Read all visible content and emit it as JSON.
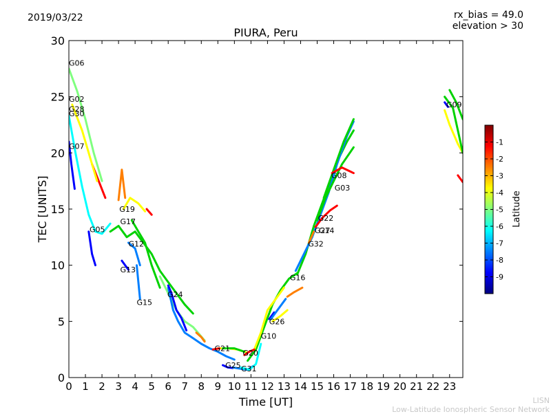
{
  "header": {
    "date": "2019/03/22",
    "rx_bias": "rx_bias = 49.0",
    "elevation": "elevation > 30"
  },
  "footer": {
    "org_short": "LISN",
    "org_full": "Low-Latitude Ionospheric Sensor Network"
  },
  "chart_data": {
    "type": "scatter",
    "title": "PIURA, Peru",
    "xlabel": "Time [UT]",
    "ylabel": "TEC [UNITS]",
    "xlim": [
      0,
      23.8
    ],
    "ylim": [
      0,
      30
    ],
    "xticks": [
      0,
      1,
      2,
      3,
      4,
      5,
      6,
      7,
      8,
      9,
      10,
      11,
      12,
      13,
      14,
      15,
      16,
      17,
      18,
      19,
      20,
      21,
      22,
      23
    ],
    "yticks": [
      0,
      5,
      10,
      15,
      20,
      25,
      30
    ],
    "colorbar": {
      "label": "Latitude",
      "range": [
        -10,
        0
      ],
      "ticks": [
        -1,
        -2,
        -3,
        -4,
        -5,
        -6,
        -7,
        -8,
        -9
      ],
      "colormap": "jet",
      "colors": [
        "#00007f",
        "#0000ff",
        "#007fff",
        "#00ffff",
        "#7fff7f",
        "#ffff00",
        "#ff7f00",
        "#ff0000",
        "#7f0000"
      ]
    },
    "satellite_labels": [
      {
        "name": "G06",
        "x": 0.0,
        "y": 28.0
      },
      {
        "name": "G02",
        "x": 0.0,
        "y": 24.8
      },
      {
        "name": "G28",
        "x": 0.0,
        "y": 23.9
      },
      {
        "name": "G30",
        "x": 0.0,
        "y": 23.5
      },
      {
        "name": "G07",
        "x": 0.0,
        "y": 20.6
      },
      {
        "name": "G05",
        "x": 1.25,
        "y": 13.2
      },
      {
        "name": "G19",
        "x": 3.05,
        "y": 15.0
      },
      {
        "name": "G17",
        "x": 3.1,
        "y": 13.9
      },
      {
        "name": "G12",
        "x": 3.6,
        "y": 11.9
      },
      {
        "name": "G13",
        "x": 3.1,
        "y": 9.6
      },
      {
        "name": "G15",
        "x": 4.1,
        "y": 6.7
      },
      {
        "name": "G24",
        "x": 5.95,
        "y": 7.4
      },
      {
        "name": "G21",
        "x": 8.8,
        "y": 2.6
      },
      {
        "name": "G25",
        "x": 9.45,
        "y": 1.1
      },
      {
        "name": "G20",
        "x": 10.5,
        "y": 2.2
      },
      {
        "name": "G31",
        "x": 10.4,
        "y": 0.8
      },
      {
        "name": "G10",
        "x": 11.6,
        "y": 3.7
      },
      {
        "name": "G26",
        "x": 12.1,
        "y": 5.0
      },
      {
        "name": "G16",
        "x": 13.35,
        "y": 8.9
      },
      {
        "name": "G32",
        "x": 14.45,
        "y": 11.9
      },
      {
        "name": "G27",
        "x": 14.85,
        "y": 13.1
      },
      {
        "name": "G14",
        "x": 15.1,
        "y": 13.1
      },
      {
        "name": "G22",
        "x": 15.05,
        "y": 14.2
      },
      {
        "name": "G08",
        "x": 15.85,
        "y": 18.0
      },
      {
        "name": "G03",
        "x": 16.05,
        "y": 16.9
      },
      {
        "name": "G09",
        "x": 22.8,
        "y": 24.3
      }
    ],
    "series": [
      {
        "color": "#7fff7f",
        "points": [
          [
            0,
            27.5
          ],
          [
            0.5,
            25.5
          ],
          [
            1,
            23
          ],
          [
            1.5,
            20
          ],
          [
            2,
            17.5
          ]
        ]
      },
      {
        "color": "#ff0000",
        "points": [
          [
            1.4,
            19
          ],
          [
            1.8,
            17.5
          ],
          [
            2.2,
            16
          ]
        ]
      },
      {
        "color": "#ffff00",
        "points": [
          [
            0.2,
            24.3
          ],
          [
            0.8,
            22
          ],
          [
            1.3,
            19.5
          ],
          [
            1.7,
            17.5
          ]
        ]
      },
      {
        "color": "#00ffff",
        "points": [
          [
            0,
            23.3
          ],
          [
            0.4,
            20
          ],
          [
            0.8,
            17
          ],
          [
            1.2,
            14.5
          ],
          [
            1.6,
            13
          ],
          [
            2,
            12.8
          ],
          [
            2.5,
            13.7
          ]
        ]
      },
      {
        "color": "#0000ff",
        "points": [
          [
            0,
            21
          ],
          [
            0.15,
            19
          ],
          [
            0.35,
            16.8
          ]
        ]
      },
      {
        "color": "#0000ff",
        "points": [
          [
            1.2,
            13
          ],
          [
            1.4,
            11
          ],
          [
            1.6,
            10
          ]
        ]
      },
      {
        "color": "#00d200",
        "points": [
          [
            2.5,
            13
          ],
          [
            3,
            13.5
          ],
          [
            3.5,
            12.5
          ],
          [
            4,
            13
          ],
          [
            4.5,
            12
          ],
          [
            5,
            11
          ],
          [
            5.5,
            9.5
          ],
          [
            6,
            8.5
          ],
          [
            6.5,
            7.5
          ],
          [
            7,
            6.5
          ],
          [
            7.5,
            5.7
          ]
        ]
      },
      {
        "color": "#ffff00",
        "points": [
          [
            3.3,
            15
          ],
          [
            3.7,
            16
          ],
          [
            4.2,
            15.5
          ],
          [
            4.6,
            14.8
          ]
        ]
      },
      {
        "color": "#ff7f00",
        "points": [
          [
            3,
            15.8
          ],
          [
            3.2,
            18.5
          ],
          [
            3.4,
            16
          ]
        ]
      },
      {
        "color": "#ff0000",
        "points": [
          [
            4.7,
            15
          ],
          [
            5,
            14.5
          ]
        ]
      },
      {
        "color": "#00d200",
        "points": [
          [
            3.8,
            14
          ],
          [
            4.2,
            13
          ],
          [
            4.6,
            12
          ],
          [
            5,
            10
          ],
          [
            5.5,
            8
          ]
        ]
      },
      {
        "color": "#007fff",
        "points": [
          [
            3.6,
            12
          ],
          [
            4,
            11.5
          ],
          [
            4.3,
            10
          ]
        ]
      },
      {
        "color": "#0000ff",
        "points": [
          [
            3.2,
            10.4
          ],
          [
            3.4,
            10
          ],
          [
            3.6,
            9.6
          ]
        ]
      },
      {
        "color": "#007fff",
        "points": [
          [
            4.1,
            10
          ],
          [
            4.2,
            8.5
          ],
          [
            4.3,
            7
          ]
        ]
      },
      {
        "color": "#7fff7f",
        "points": [
          [
            5.5,
            9
          ],
          [
            6,
            7.5
          ],
          [
            6.5,
            6
          ],
          [
            7,
            5
          ],
          [
            7.5,
            4.5
          ],
          [
            8.2,
            3.3
          ]
        ]
      },
      {
        "color": "#ff7f00",
        "points": [
          [
            7.7,
            4
          ],
          [
            8,
            3.6
          ],
          [
            8.2,
            3.2
          ]
        ]
      },
      {
        "color": "#007fff",
        "points": [
          [
            6,
            8
          ],
          [
            6.3,
            6
          ],
          [
            6.6,
            5
          ],
          [
            7,
            4
          ],
          [
            7.5,
            3.5
          ],
          [
            8,
            3
          ],
          [
            8.5,
            2.6
          ],
          [
            9,
            2.3
          ],
          [
            9.5,
            1.9
          ],
          [
            10,
            1.6
          ]
        ]
      },
      {
        "color": "#0000ff",
        "points": [
          [
            6,
            8.2
          ],
          [
            6.2,
            7.5
          ],
          [
            6.5,
            6
          ],
          [
            6.8,
            5.3
          ],
          [
            7.1,
            4.2
          ]
        ]
      },
      {
        "color": "#ffff00",
        "points": [
          [
            9,
            2.6
          ],
          [
            9.6,
            2.6
          ],
          [
            10.2,
            2.5
          ],
          [
            10.8,
            2.2
          ]
        ]
      },
      {
        "color": "#ff0000",
        "points": [
          [
            8.7,
            2.5
          ],
          [
            9.1,
            2.6
          ]
        ]
      },
      {
        "color": "#00d200",
        "points": [
          [
            9.3,
            2.6
          ],
          [
            10,
            2.6
          ],
          [
            10.6,
            2.3
          ]
        ]
      },
      {
        "color": "#0000ff",
        "points": [
          [
            9.3,
            1.1
          ],
          [
            9.6,
            0.9
          ],
          [
            9.9,
            0.85
          ]
        ]
      },
      {
        "color": "#007fff",
        "points": [
          [
            9.9,
            0.9
          ],
          [
            10.3,
            0.8
          ],
          [
            10.8,
            0.7
          ],
          [
            11.1,
            1
          ]
        ]
      },
      {
        "color": "#00ffff",
        "points": [
          [
            10.4,
            0.9
          ],
          [
            10.9,
            0.7
          ],
          [
            11.3,
            1.2
          ],
          [
            11.6,
            3
          ]
        ]
      },
      {
        "color": "#00d200",
        "points": [
          [
            10.8,
            1.5
          ],
          [
            11.3,
            2.5
          ],
          [
            11.8,
            4.5
          ],
          [
            12.3,
            6.5
          ],
          [
            12.8,
            7.8
          ],
          [
            13.3,
            8.8
          ],
          [
            13.8,
            9.3
          ]
        ]
      },
      {
        "color": "#ffff00",
        "points": [
          [
            11.2,
            2.5
          ],
          [
            11.6,
            4
          ],
          [
            12,
            6
          ],
          [
            12.5,
            7
          ],
          [
            13,
            8
          ]
        ]
      },
      {
        "color": "#ff0000",
        "points": [
          [
            10.6,
            2
          ],
          [
            10.9,
            2.3
          ],
          [
            11.2,
            2.5
          ]
        ]
      },
      {
        "color": "#0000ff",
        "points": [
          [
            12.1,
            5.2
          ],
          [
            12.4,
            5.8
          ]
        ]
      },
      {
        "color": "#ffff00",
        "points": [
          [
            12.3,
            5
          ],
          [
            12.8,
            5.5
          ],
          [
            13.2,
            6
          ]
        ]
      },
      {
        "color": "#007fff",
        "points": [
          [
            12.2,
            5.2
          ],
          [
            12.6,
            6
          ],
          [
            13.1,
            7
          ]
        ]
      },
      {
        "color": "#ff7f00",
        "points": [
          [
            13.2,
            7.2
          ],
          [
            13.6,
            7.6
          ],
          [
            14.1,
            8
          ]
        ]
      },
      {
        "color": "#00d200",
        "points": [
          [
            13.8,
            9.2
          ],
          [
            14.3,
            11
          ],
          [
            14.8,
            13.5
          ],
          [
            15.3,
            15.5
          ],
          [
            15.8,
            17.5
          ],
          [
            16.3,
            19.5
          ],
          [
            16.8,
            21
          ],
          [
            17.2,
            22
          ]
        ]
      },
      {
        "color": "#007fff",
        "points": [
          [
            13.7,
            9.5
          ],
          [
            14.2,
            11
          ],
          [
            14.7,
            12.5
          ],
          [
            15.2,
            14.5
          ],
          [
            15.7,
            16.5
          ],
          [
            16.2,
            19
          ],
          [
            16.8,
            21.5
          ],
          [
            17.2,
            22.8
          ]
        ]
      },
      {
        "color": "#00d200",
        "points": [
          [
            15,
            14
          ],
          [
            15.5,
            16
          ],
          [
            16,
            17.5
          ],
          [
            16.5,
            19
          ],
          [
            17.2,
            20.5
          ]
        ]
      },
      {
        "color": "#00d200",
        "points": [
          [
            15.4,
            16
          ],
          [
            16,
            18.5
          ],
          [
            16.6,
            21
          ],
          [
            17.2,
            23
          ]
        ]
      },
      {
        "color": "#ff0000",
        "points": [
          [
            14.9,
            13.4
          ],
          [
            15.3,
            14.2
          ],
          [
            15.8,
            14.9
          ],
          [
            16.2,
            15.3
          ]
        ]
      },
      {
        "color": "#ff7f00",
        "points": [
          [
            14.5,
            12
          ],
          [
            14.8,
            13
          ]
        ]
      },
      {
        "color": "#ff0000",
        "points": [
          [
            15.9,
            18.2
          ],
          [
            16.5,
            18.7
          ],
          [
            17.2,
            18.2
          ]
        ]
      },
      {
        "color": "#ffff00",
        "points": [
          [
            22.7,
            23.8
          ],
          [
            23,
            22.5
          ],
          [
            23.5,
            20.8
          ],
          [
            23.8,
            20
          ]
        ]
      },
      {
        "color": "#00d200",
        "points": [
          [
            22.7,
            25
          ],
          [
            23.2,
            24
          ],
          [
            23.8,
            20
          ]
        ]
      },
      {
        "color": "#00d200",
        "points": [
          [
            23,
            25.6
          ],
          [
            23.4,
            24.5
          ],
          [
            23.8,
            23
          ]
        ]
      },
      {
        "color": "#0000ff",
        "points": [
          [
            22.7,
            24.5
          ],
          [
            22.9,
            24.1
          ]
        ]
      },
      {
        "color": "#ff0000",
        "points": [
          [
            23.5,
            18
          ],
          [
            23.8,
            17.4
          ]
        ]
      }
    ]
  }
}
